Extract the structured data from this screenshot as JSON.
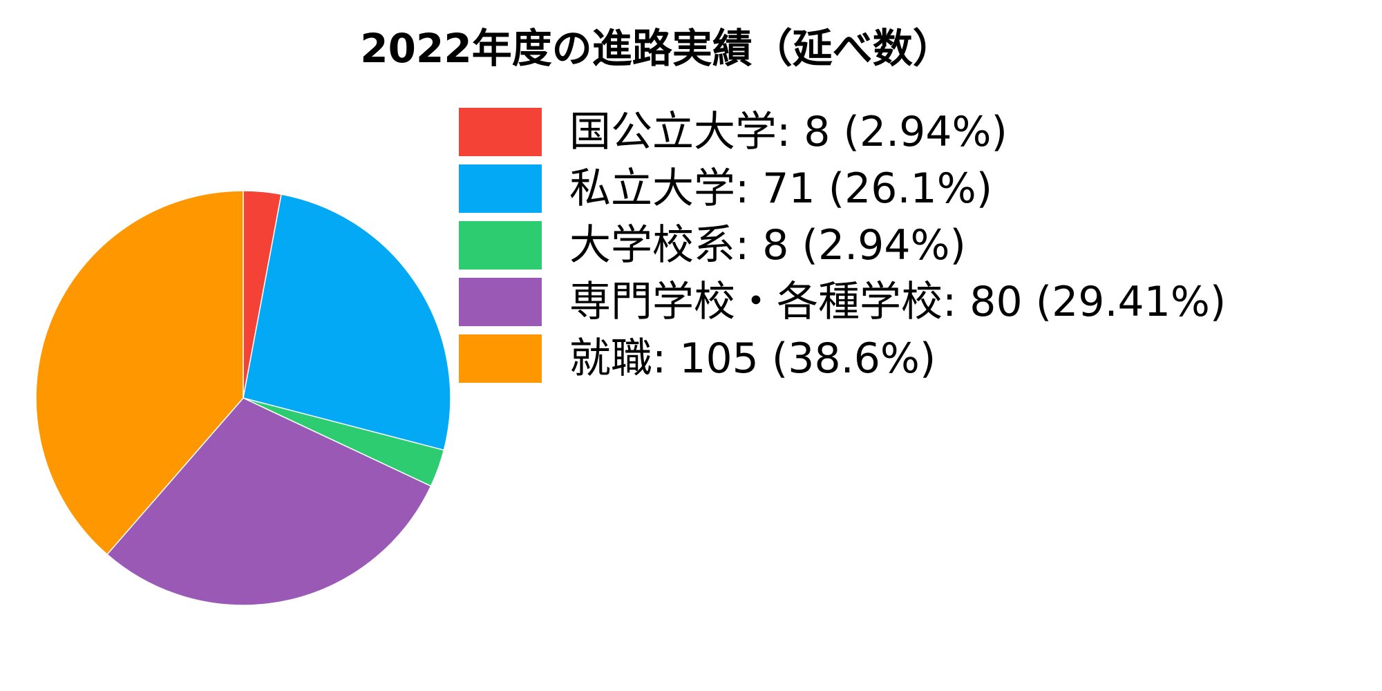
{
  "chart_data": {
    "type": "pie",
    "title": "2022年度の進路実績（延べ数）",
    "start_angle": "12 o'clock, clockwise",
    "legend_position": "right",
    "slices": [
      {
        "label": "国公立大学",
        "value": 8,
        "percent": "2.94%",
        "legend_text": "国公立大学: 8 (2.94%)",
        "color": "#F44336"
      },
      {
        "label": "私立大学",
        "value": 71,
        "percent": "26.1%",
        "legend_text": "私立大学: 71 (26.1%)",
        "color": "#03A9F4"
      },
      {
        "label": "大学校系",
        "value": 8,
        "percent": "2.94%",
        "legend_text": "大学校系: 8 (2.94%)",
        "color": "#2ECC71"
      },
      {
        "label": "専門学校・各種学校",
        "value": 80,
        "percent": "29.41%",
        "legend_text": "専門学校・各種学校: 80 (29.41%)",
        "color": "#9B59B6"
      },
      {
        "label": "就職",
        "value": 105,
        "percent": "38.6%",
        "legend_text": "就職: 105 (38.6%)",
        "color": "#FF9800"
      }
    ]
  }
}
